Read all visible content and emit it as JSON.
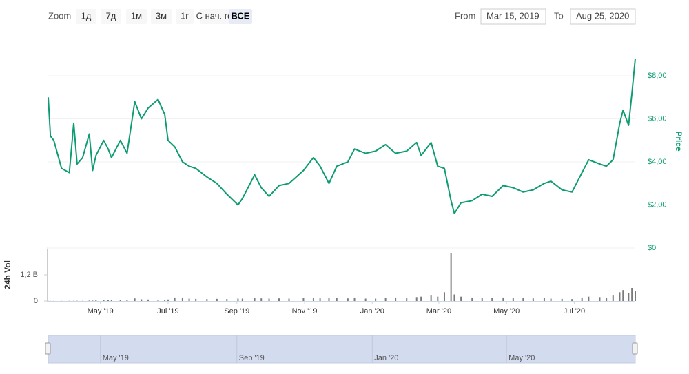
{
  "chart_data": {
    "type": "line",
    "range_selector": {
      "label": "Zoom",
      "buttons": [
        "1д",
        "7д",
        "1м",
        "3м",
        "1г",
        "С нач. го",
        "ВСЕ"
      ],
      "active": 6,
      "from_label": "From",
      "from": "Mar 15, 2019",
      "to_label": "To",
      "to": "Aug 25, 2020"
    },
    "x": [
      "2019-03-15",
      "2019-03-17",
      "2019-03-20",
      "2019-03-27",
      "2019-04-03",
      "2019-04-07",
      "2019-04-10",
      "2019-04-15",
      "2019-04-21",
      "2019-04-24",
      "2019-04-27",
      "2019-05-04",
      "2019-05-08",
      "2019-05-11",
      "2019-05-19",
      "2019-05-25",
      "2019-06-01",
      "2019-06-07",
      "2019-06-13",
      "2019-06-22",
      "2019-06-28",
      "2019-07-01",
      "2019-07-07",
      "2019-07-14",
      "2019-07-20",
      "2019-07-26",
      "2019-08-05",
      "2019-08-14",
      "2019-08-23",
      "2019-09-02",
      "2019-09-06",
      "2019-09-17",
      "2019-09-23",
      "2019-09-30",
      "2019-10-09",
      "2019-10-18",
      "2019-10-31",
      "2019-11-09",
      "2019-11-15",
      "2019-11-23",
      "2019-11-30",
      "2019-12-10",
      "2019-12-16",
      "2019-12-26",
      "2020-01-04",
      "2020-01-13",
      "2020-01-22",
      "2020-02-01",
      "2020-02-10",
      "2020-02-14",
      "2020-02-23",
      "2020-02-29",
      "2020-03-06",
      "2020-03-12",
      "2020-03-15",
      "2020-03-21",
      "2020-03-31",
      "2020-04-09",
      "2020-04-18",
      "2020-04-28",
      "2020-05-07",
      "2020-05-16",
      "2020-05-25",
      "2020-06-04",
      "2020-06-10",
      "2020-06-20",
      "2020-06-29",
      "2020-07-08",
      "2020-07-14",
      "2020-07-24",
      "2020-07-30",
      "2020-08-05",
      "2020-08-11",
      "2020-08-14",
      "2020-08-19",
      "2020-08-22",
      "2020-08-25"
    ],
    "series": [
      {
        "name": "Price",
        "color": "#0e9c72",
        "values": [
          7.0,
          5.2,
          5.0,
          3.7,
          3.5,
          5.8,
          3.9,
          4.2,
          5.3,
          3.6,
          4.3,
          5.0,
          4.6,
          4.2,
          5.0,
          4.4,
          6.8,
          6.0,
          6.5,
          6.9,
          6.2,
          5.0,
          4.7,
          4.0,
          3.8,
          3.7,
          3.3,
          3.0,
          2.5,
          2.0,
          2.3,
          3.4,
          2.8,
          2.4,
          2.9,
          3.0,
          3.6,
          4.2,
          3.8,
          3.0,
          3.8,
          4.0,
          4.6,
          4.4,
          4.5,
          4.8,
          4.4,
          4.5,
          4.9,
          4.3,
          4.9,
          3.8,
          3.7,
          2.2,
          1.6,
          2.1,
          2.2,
          2.5,
          2.4,
          2.9,
          2.8,
          2.6,
          2.7,
          3.0,
          3.1,
          2.7,
          2.6,
          3.5,
          4.1,
          3.9,
          3.8,
          4.1,
          5.8,
          6.4,
          5.7,
          7.2,
          8.8
        ]
      },
      {
        "name": "24h Vol",
        "color": "#7a7a7a",
        "type": "column",
        "axis": "y2",
        "values": [
          5000000,
          5000000,
          6000000,
          6000000,
          8000000,
          10000000,
          8000000,
          8000000,
          20000000,
          20000000,
          30000000,
          60000000,
          50000000,
          60000000,
          50000000,
          60000000,
          120000000,
          80000000,
          70000000,
          60000000,
          60000000,
          70000000,
          160000000,
          150000000,
          110000000,
          100000000,
          90000000,
          100000000,
          90000000,
          110000000,
          110000000,
          130000000,
          120000000,
          110000000,
          120000000,
          110000000,
          130000000,
          150000000,
          120000000,
          140000000,
          130000000,
          120000000,
          130000000,
          110000000,
          110000000,
          150000000,
          130000000,
          140000000,
          180000000,
          200000000,
          250000000,
          200000000,
          400000000,
          2200000000,
          300000000,
          200000000,
          150000000,
          140000000,
          130000000,
          160000000,
          150000000,
          140000000,
          120000000,
          130000000,
          110000000,
          100000000,
          90000000,
          160000000,
          200000000,
          180000000,
          150000000,
          250000000,
          400000000,
          500000000,
          350000000,
          600000000,
          450000000
        ]
      }
    ],
    "xlim": [
      "2019-03-15",
      "2020-08-25"
    ],
    "xticks": [
      {
        "value": "2019-05-01",
        "label": "May '19"
      },
      {
        "value": "2019-07-01",
        "label": "Jul '19"
      },
      {
        "value": "2019-09-01",
        "label": "Sep '19"
      },
      {
        "value": "2019-11-01",
        "label": "Nov '19"
      },
      {
        "value": "2020-01-01",
        "label": "Jan '20"
      },
      {
        "value": "2020-03-01",
        "label": "Mar '20"
      },
      {
        "value": "2020-05-01",
        "label": "May '20"
      },
      {
        "value": "2020-07-01",
        "label": "Jul '20"
      }
    ],
    "ylim": [
      0,
      9
    ],
    "yticks": [
      {
        "value": 0,
        "label": "$0"
      },
      {
        "value": 2,
        "label": "$2,00"
      },
      {
        "value": 4,
        "label": "$4,00"
      },
      {
        "value": 6,
        "label": "$6,00"
      },
      {
        "value": 8,
        "label": "$8,00"
      }
    ],
    "y2lim": [
      0,
      2400000000
    ],
    "y2ticks": [
      0,
      {
        "value": 1200000000,
        "label": "1,2 B"
      }
    ],
    "navigator": {
      "xticks": [
        {
          "value": "2019-05-01",
          "label": "May '19"
        },
        {
          "value": "2019-09-01",
          "label": "Sep '19"
        },
        {
          "value": "2020-01-01",
          "label": "Jan '20"
        },
        {
          "value": "2020-05-01",
          "label": "May '20"
        }
      ]
    }
  }
}
